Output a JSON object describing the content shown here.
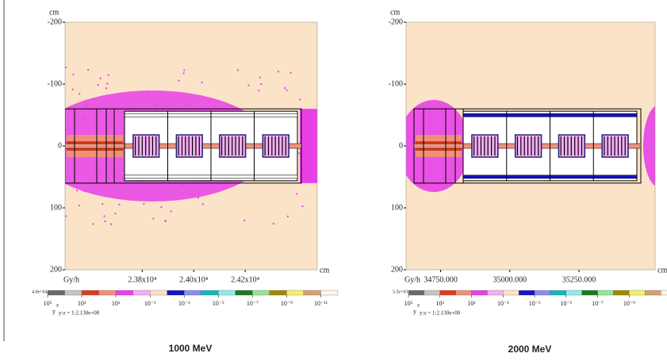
{
  "chart_data": [
    {
      "type": "heatmap",
      "y_label": "cm",
      "x_label": "cm",
      "unit_label": "Gy/h",
      "xlim": [
        23500,
        24480
      ],
      "xticks": [
        {
          "value": 23800,
          "label": "2.38x10⁴"
        },
        {
          "value": 24000,
          "label": "2.40x10⁴"
        },
        {
          "value": 24200,
          "label": "2.42x10⁴"
        }
      ],
      "ylim": [
        -200,
        200
      ],
      "yticks": [
        -200,
        -100,
        0,
        100,
        200
      ],
      "scale_max_label": "4.0e+04",
      "colorbar_colors": [
        "#6a6a6a",
        "#c4c4c4",
        "#e03a1e",
        "#f0907a",
        "#e840e8",
        "#f4aef4",
        "#fbe3c8",
        "#1414c8",
        "#8c8cf0",
        "#10b8b8",
        "#90ecec",
        "#1e7a1e",
        "#98e498",
        "#a08a00",
        "#f4f070",
        "#d8a070",
        "#fff4ea"
      ],
      "colorbar_ticks": [
        {
          "value": 100000,
          "label": "10⁵"
        },
        {
          "value": 1000,
          "label": "10³"
        },
        {
          "value": 10,
          "label": "10¹"
        },
        {
          "value": 0.1,
          "label": "10⁻¹"
        },
        {
          "value": 0.001,
          "label": "10⁻³"
        },
        {
          "value": 1e-05,
          "label": "10⁻⁵"
        },
        {
          "value": 1e-07,
          "label": "10⁻⁷"
        },
        {
          "value": 1e-09,
          "label": "10⁻⁹"
        },
        {
          "value": 1e-11,
          "label": "10⁻¹¹"
        }
      ],
      "axis_glyph": [
        "z",
        "y"
      ],
      "ratio_label": "y:z = 1:2.130e+00",
      "caption": "1000 MeV"
    },
    {
      "type": "heatmap",
      "y_label": "cm",
      "x_label": "cm",
      "unit_label": "Gy/h",
      "xlim": [
        34625,
        35525
      ],
      "xticks": [
        {
          "value": 34750,
          "label": "34750.000"
        },
        {
          "value": 35000,
          "label": "35000.000"
        },
        {
          "value": 35250,
          "label": "35250.000"
        }
      ],
      "ylim": [
        -200,
        200
      ],
      "yticks": [
        -200,
        -100,
        0,
        100,
        200
      ],
      "scale_max_label": "5.5e+03",
      "colorbar_colors": [
        "#6a6a6a",
        "#c4c4c4",
        "#e03a1e",
        "#f0907a",
        "#e840e8",
        "#f4aef4",
        "#fbe3c8",
        "#1414c8",
        "#8c8cf0",
        "#10b8b8",
        "#90ecec",
        "#1e7a1e",
        "#98e498",
        "#a08a00",
        "#f4f070",
        "#d8a070",
        "#fff4ea"
      ],
      "colorbar_ticks": [
        {
          "value": 100000,
          "label": "10⁵"
        },
        {
          "value": 1000,
          "label": "10³"
        },
        {
          "value": 10,
          "label": "10¹"
        },
        {
          "value": 0.1,
          "label": "10⁻¹"
        },
        {
          "value": 0.001,
          "label": "10⁻³"
        },
        {
          "value": 1e-05,
          "label": "10⁻⁵"
        },
        {
          "value": 1e-07,
          "label": "10⁻⁷"
        },
        {
          "value": 1e-09,
          "label": "10⁻⁹"
        }
      ],
      "axis_glyph": [
        "z",
        "y"
      ],
      "ratio_label": "y:z = 1:2.130e+00",
      "caption": "2000 MeV"
    }
  ]
}
